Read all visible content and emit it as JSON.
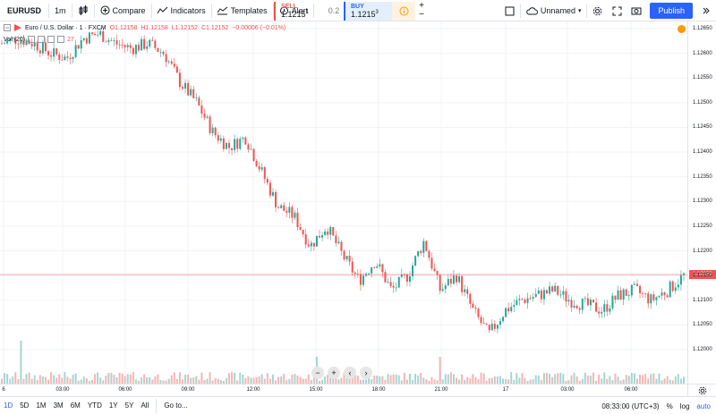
{
  "toolbar": {
    "symbol": "EURUSD",
    "interval": "1m",
    "compare_label": "Compare",
    "indicators_label": "Indicators",
    "templates_label": "Templates",
    "alert_label": "Alert",
    "sell_label": "SELL",
    "sell_price": "1.1215",
    "sell_sup": "1",
    "spread": "0.2",
    "buy_label": "BUY",
    "buy_price": "1.1215",
    "buy_sup": "3",
    "layout_label": "Unnamed",
    "publish_label": "Publish"
  },
  "legend": {
    "title": "Euro / U.S. Dollar · 1 · FXCM",
    "open": "O1.12158",
    "high": "H1.12158",
    "low": "L1.12152",
    "close": "C1.12152",
    "change": "−0.00006 (−0.01%)",
    "vol_label": "Vol (20)",
    "vol_value": "27"
  },
  "price_scale": {
    "ticks": [
      "1.12650",
      "1.12600",
      "1.12550",
      "1.12500",
      "1.12450",
      "1.12400",
      "1.12350",
      "1.12300",
      "1.12250",
      "1.12200",
      "1.12150",
      "1.12100",
      "1.12050",
      "1.12000"
    ],
    "tick_values": [
      1.1265,
      1.126,
      1.1255,
      1.125,
      1.1245,
      1.124,
      1.1235,
      1.123,
      1.1225,
      1.122,
      1.1215,
      1.121,
      1.1205,
      1.12
    ],
    "current_price": "1.12152",
    "current_value": 1.12152
  },
  "time_axis": {
    "labels": [
      "6",
      "03:00",
      "06:00",
      "09:00",
      "12:00",
      "15:00",
      "18:00",
      "21:00",
      "17",
      "03:00",
      "06:00"
    ]
  },
  "bottom_bar": {
    "ranges": [
      "1D",
      "5D",
      "1M",
      "3M",
      "6M",
      "YTD",
      "1Y",
      "5Y",
      "All"
    ],
    "goto_label": "Go to...",
    "clock": "08:33:00 (UTC+3)",
    "percent_label": "%",
    "log_label": "log",
    "auto_label": "auto"
  },
  "chart_data": {
    "type": "candlestick",
    "x_labels": [
      "6",
      "03:00",
      "06:00",
      "09:00",
      "12:00",
      "15:00",
      "18:00",
      "21:00",
      "17",
      "03:00",
      "06:00"
    ],
    "close_path": [
      1.1262,
      1.1263,
      1.1262,
      1.126,
      1.1259,
      1.1263,
      1.1264,
      1.1262,
      1.1261,
      1.1262,
      1.126,
      1.1254,
      1.125,
      1.1244,
      1.1241,
      1.1243,
      1.1236,
      1.1229,
      1.1227,
      1.1221,
      1.1225,
      1.1219,
      1.1214,
      1.1218,
      1.1212,
      1.1215,
      1.1222,
      1.1212,
      1.1215,
      1.1208,
      1.1203,
      1.1208,
      1.121,
      1.1211,
      1.1212,
      1.121,
      1.1209,
      1.1208,
      1.1211,
      1.1212,
      1.121,
      1.1212,
      1.1215
    ],
    "ylim": [
      1.12,
      1.1268
    ],
    "colors": {
      "up": "#26a69a",
      "down": "#ef5350"
    }
  }
}
